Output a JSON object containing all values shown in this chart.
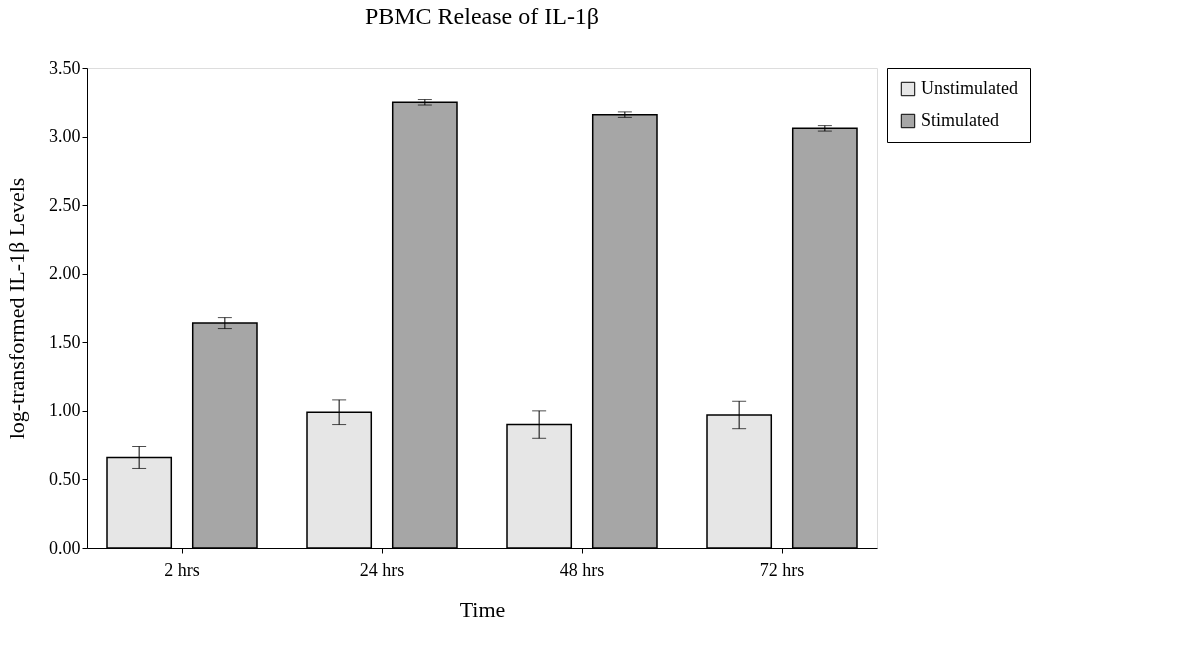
{
  "chart_data": {
    "type": "bar",
    "title": "PBMC Release of IL-1β",
    "xlabel": "Time",
    "ylabel": "log-transformed IL-1β Levels",
    "categories": [
      "2 hrs",
      "24 hrs",
      "48 hrs",
      "72 hrs"
    ],
    "series": [
      {
        "name": "Unstimulated",
        "color": "#e6e6e6",
        "values": [
          0.66,
          0.99,
          0.9,
          0.97
        ],
        "errors": [
          0.08,
          0.09,
          0.1,
          0.1
        ]
      },
      {
        "name": "Stimulated",
        "color": "#a6a6a6",
        "values": [
          1.64,
          3.25,
          3.16,
          3.06
        ],
        "errors": [
          0.04,
          0.02,
          0.02,
          0.02
        ]
      }
    ],
    "ylim": [
      0,
      3.5
    ],
    "yticks": [
      {
        "value": 0,
        "label": "0.00"
      },
      {
        "value": 0.5,
        "label": "0.50"
      },
      {
        "value": 1,
        "label": "1.00"
      },
      {
        "value": 1.5,
        "label": "1.50"
      },
      {
        "value": 2,
        "label": "2.00"
      },
      {
        "value": 2.5,
        "label": "2.50"
      },
      {
        "value": 3,
        "label": "3.00"
      },
      {
        "value": 3.5,
        "label": "3.50"
      }
    ],
    "grid": false,
    "legend": "right"
  }
}
